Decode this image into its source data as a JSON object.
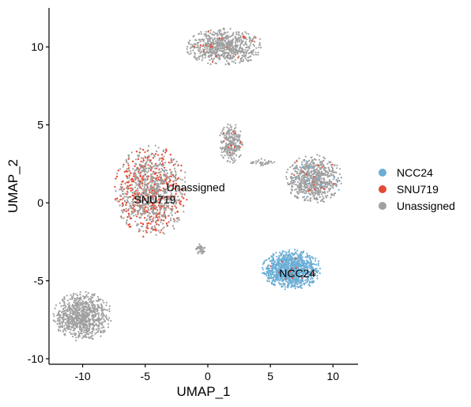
{
  "chart_data": {
    "type": "scatter",
    "title": "",
    "xlabel": "UMAP_1",
    "ylabel": "UMAP_2",
    "xlim": [
      -12.5,
      12
    ],
    "ylim": [
      -10.2,
      12.5
    ],
    "xticks": [
      -10,
      -5,
      0,
      5,
      10
    ],
    "yticks": [
      -10,
      -5,
      0,
      5,
      10
    ],
    "xtick_labels": [
      "-10",
      "-5",
      "0",
      "5",
      "10"
    ],
    "ytick_labels": [
      "-10",
      "-5",
      "0",
      "5",
      "10"
    ],
    "grid": false,
    "legend_position": "right",
    "series": [
      {
        "name": "NCC24",
        "color": "#6BAED6"
      },
      {
        "name": "SNU719",
        "color": "#E34A33"
      },
      {
        "name": "Unassigned",
        "color": "#A0A0A0"
      }
    ],
    "clusters": [
      {
        "series": "Unassigned",
        "cx": 1.3,
        "cy": 10.0,
        "rx": 3.2,
        "ry": 1.2,
        "n": 700,
        "mix": {
          "SNU719": 0.03
        }
      },
      {
        "series": "Unassigned",
        "cx": 1.9,
        "cy": 3.8,
        "rx": 1.0,
        "ry": 1.35,
        "n": 260,
        "mix": {
          "SNU719": 0.03
        }
      },
      {
        "series": "SNU719",
        "cx": -4.5,
        "cy": 0.7,
        "rx": 3.0,
        "ry": 3.0,
        "n": 1500,
        "mix": {
          "Unassigned": 0.55
        }
      },
      {
        "series": "Unassigned",
        "cx": -0.6,
        "cy": -3.0,
        "rx": 0.4,
        "ry": 0.4,
        "n": 40,
        "mix": {}
      },
      {
        "series": "Unassigned",
        "cx": 8.5,
        "cy": 1.5,
        "rx": 2.3,
        "ry": 1.6,
        "n": 750,
        "mix": {
          "SNU719": 0.02,
          "NCC24": 0.02
        }
      },
      {
        "series": "NCC24",
        "cx": 6.7,
        "cy": -4.3,
        "rx": 2.4,
        "ry": 1.3,
        "n": 1100,
        "mix": {
          "SNU719": 0.01
        }
      },
      {
        "series": "Unassigned",
        "cx": -10.0,
        "cy": -7.3,
        "rx": 2.4,
        "ry": 1.6,
        "n": 850,
        "mix": {}
      },
      {
        "series": "Unassigned",
        "cx": 4.4,
        "cy": 2.6,
        "rx": 1.1,
        "ry": 0.25,
        "n": 35,
        "mix": {}
      }
    ],
    "annotations": [
      {
        "text": "Unassigned",
        "x": -3.3,
        "y": 1.0
      },
      {
        "text": "SNU719",
        "x": -5.9,
        "y": 0.2
      },
      {
        "text": "NCC24",
        "x": 5.7,
        "y": -4.5
      }
    ]
  }
}
